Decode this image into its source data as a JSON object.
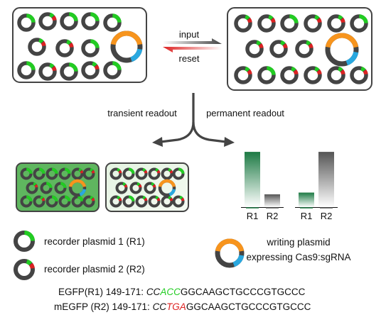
{
  "arrows": {
    "input_label": "input",
    "reset_label": "reset"
  },
  "readouts": {
    "transient_label": "transient readout",
    "permanent_label": "permanent readout"
  },
  "chart_data": [
    {
      "type": "bar",
      "categories": [
        "R1",
        "R2"
      ],
      "values": [
        0.95,
        0.22
      ],
      "bar_colors": [
        "#1d7a44",
        "#555555"
      ]
    },
    {
      "type": "bar",
      "categories": [
        "R1",
        "R2"
      ],
      "values": [
        0.25,
        0.95
      ],
      "bar_colors": [
        "#1d7a44",
        "#555555"
      ]
    }
  ],
  "legend": {
    "r1_label": "recorder plasmid 1 (R1)",
    "r2_label": "recorder plasmid 2 (R2)",
    "writing_line1": "writing plasmid",
    "writing_line2": "expressing Cas9:sgRNA"
  },
  "sequences": {
    "egfp_prefix": "EGFP(R1) 149-171: ",
    "egfp_highlight_1": "CC",
    "egfp_highlight_2": "ACC",
    "egfp_rest": "GGCAAGCTGCCCGTGCCC",
    "megfp_prefix": "mEGFP (R2) 149-171: ",
    "megfp_highlight_1": "CC",
    "megfp_highlight_2": "TGA",
    "megfp_rest": "GGCAAGCTGCCCGTGCCC"
  },
  "colors": {
    "green": "#22cc22",
    "red": "#dd2222",
    "orange": "#f7941d",
    "blue": "#29a8e0",
    "ring": "#444444",
    "transient_fill_1": "#5fb65f",
    "transient_fill_2": "#e4f3e1",
    "bar_green": "#1d7a44"
  }
}
